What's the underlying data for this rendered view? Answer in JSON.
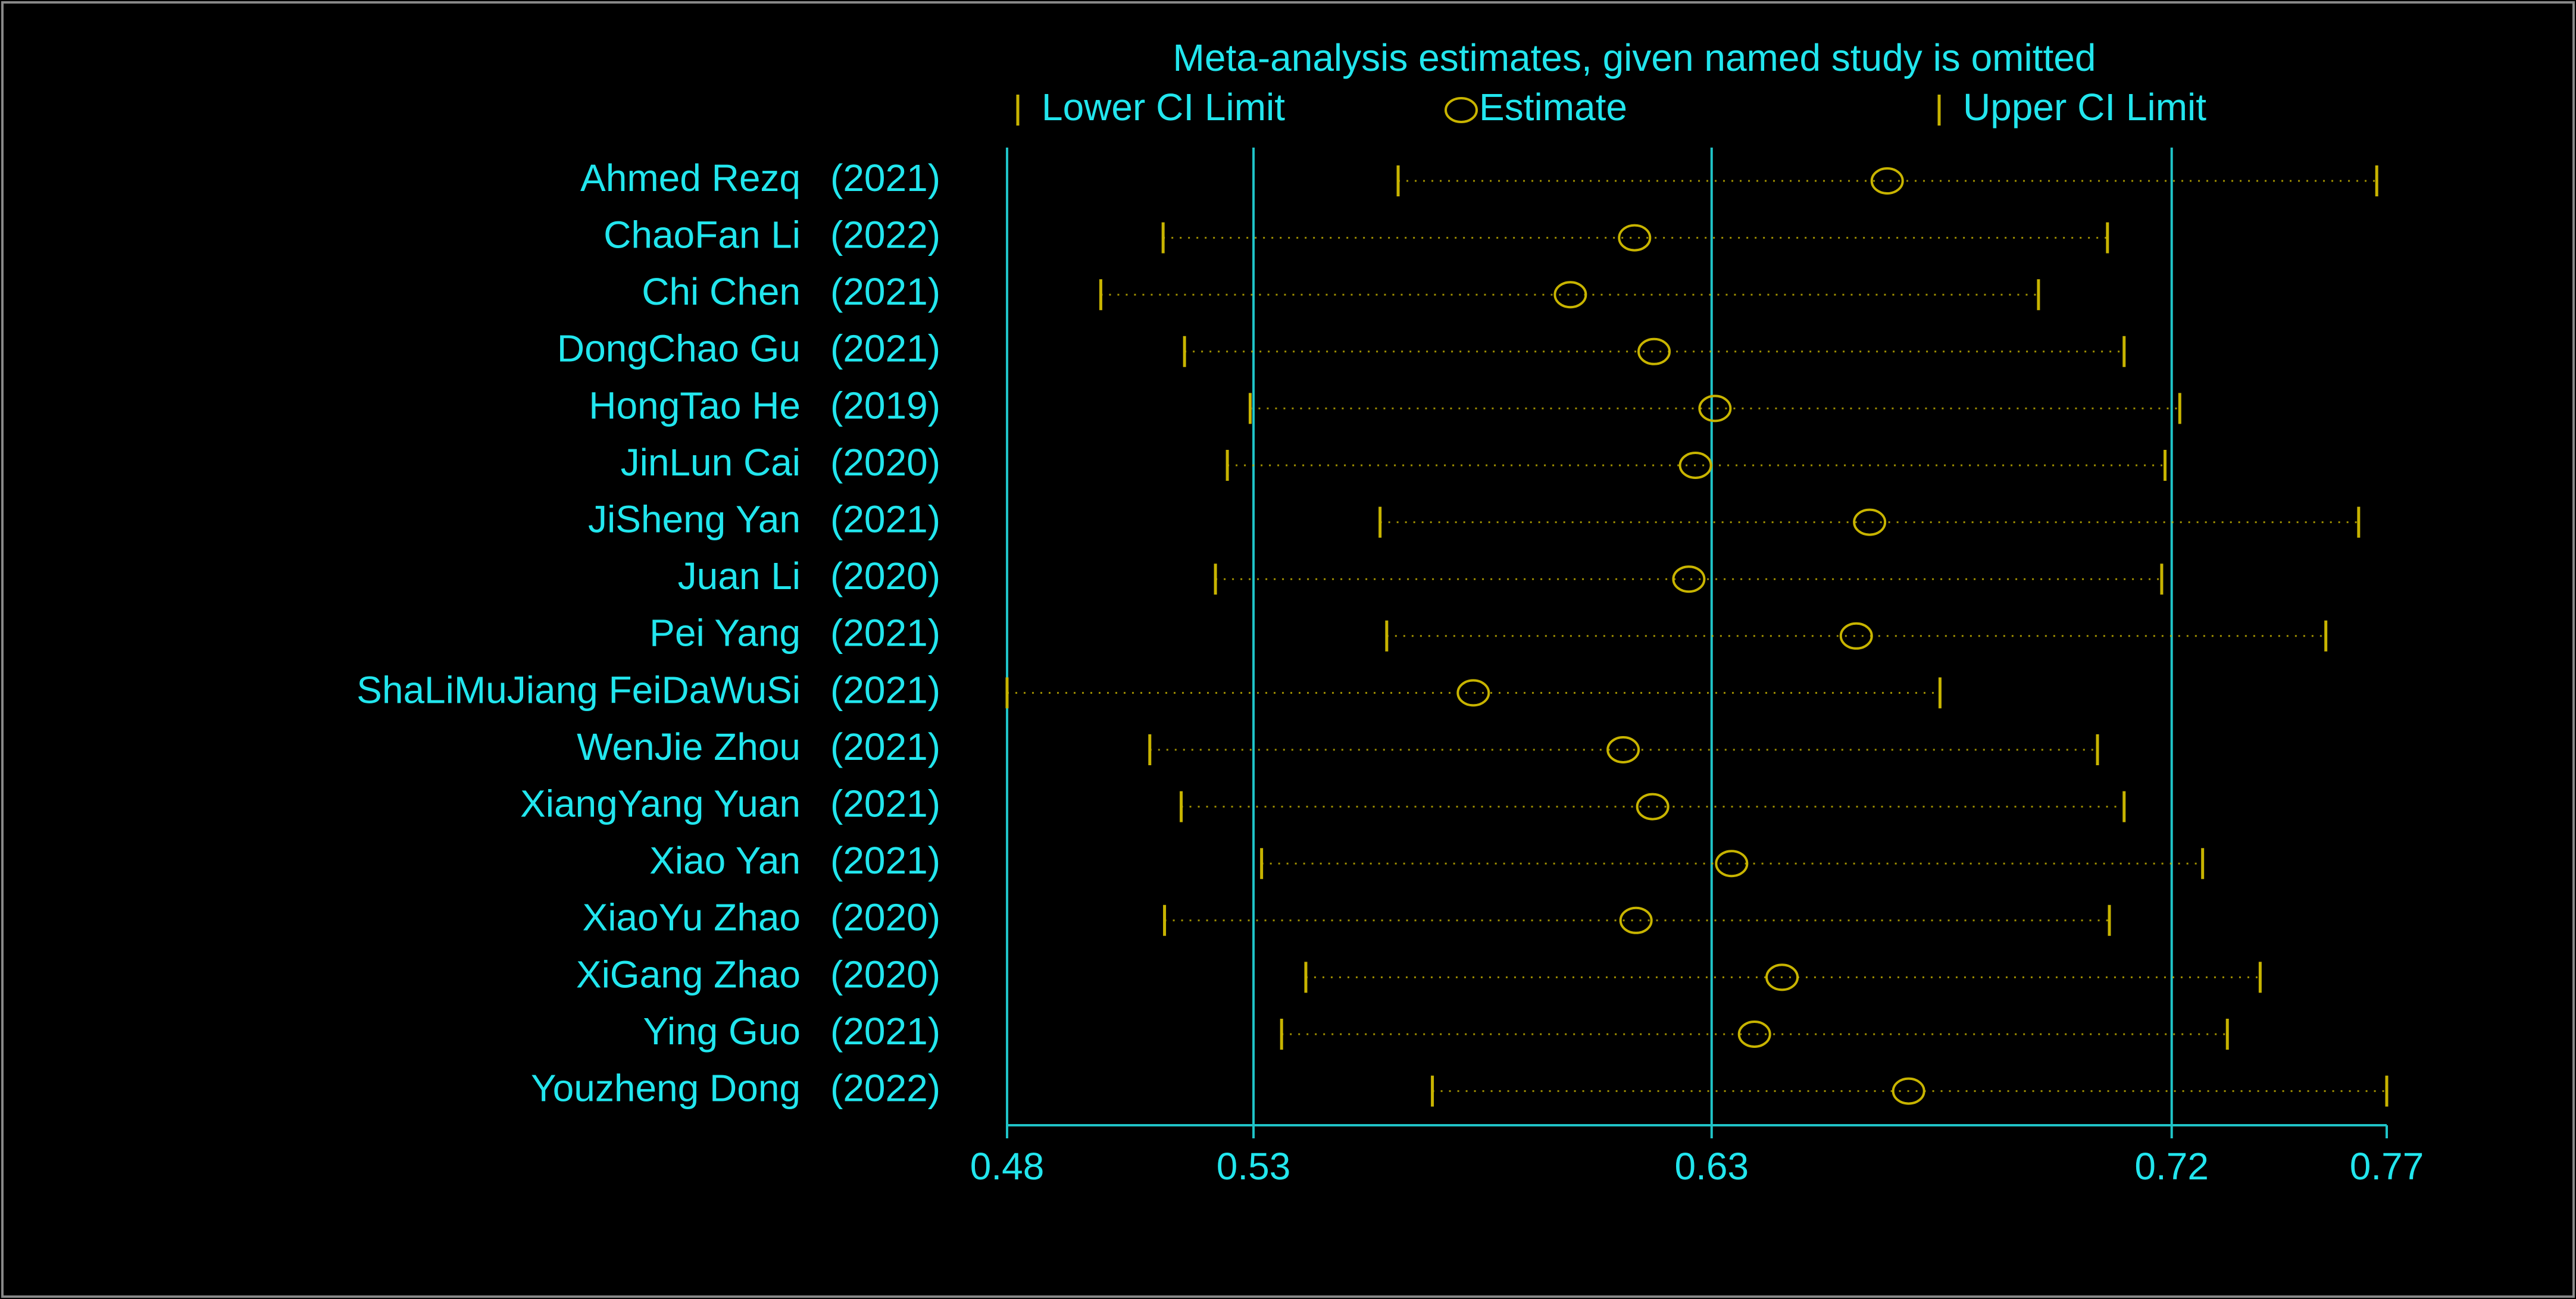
{
  "chart_data": {
    "type": "sensitivity",
    "title": "Meta-analysis estimates, given named study is omitted",
    "categories": [
      "Ahmed Rezq",
      "ChaoFan Li",
      "Chi Chen",
      "DongChao Gu",
      "HongTao He",
      "JinLun Cai",
      "JiSheng Yan",
      "Juan Li",
      "Pei Yang",
      "ShaLiMuJiang FeiDaWuSi",
      "WenJie Zhou",
      "XiangYang Yuan",
      "Xiao Yan",
      "XiaoYu Zhao",
      "XiGang Zhao",
      "Ying Guo",
      "Youzheng Dong"
    ],
    "category_years": [
      "(2021)",
      "(2022)",
      "(2021)",
      "(2021)",
      "(2019)",
      "(2020)",
      "(2021)",
      "(2020)",
      "(2021)",
      "(2021)",
      "(2021)",
      "(2021)",
      "(2021)",
      "(2020)",
      "(2020)",
      "(2021)",
      "(2022)"
    ],
    "series": [
      {
        "name": "Lower CI Limit",
        "color": "#c8b400",
        "values": [
          0.5617,
          0.5123,
          0.4992,
          0.5168,
          0.5306,
          0.5258,
          0.5579,
          0.5233,
          0.5593,
          0.4795,
          0.5095,
          0.5161,
          0.533,
          0.5126,
          0.5423,
          0.5372,
          0.5689
        ]
      },
      {
        "name": "Estimate",
        "color": "#c8b400",
        "values": [
          0.6645,
          0.6114,
          0.5979,
          0.6155,
          0.6283,
          0.6242,
          0.6608,
          0.6228,
          0.658,
          0.5775,
          0.609,
          0.6152,
          0.6318,
          0.6117,
          0.6424,
          0.6366,
          0.669
        ]
      },
      {
        "name": "Upper CI Limit",
        "color": "#c8b400",
        "values": [
          0.7674,
          0.7108,
          0.6963,
          0.7143,
          0.726,
          0.7229,
          0.7636,
          0.7222,
          0.7567,
          0.6756,
          0.7087,
          0.7143,
          0.7308,
          0.7112,
          0.7429,
          0.736,
          0.7695
        ]
      }
    ],
    "xlim": [
      0.4795,
      0.7695
    ],
    "xticks": [
      {
        "value": 0.4795,
        "label": "0.48"
      },
      {
        "value": 0.5313,
        "label": "0.53"
      },
      {
        "value": 0.6276,
        "label": "0.63"
      },
      {
        "value": 0.7243,
        "label": "0.72"
      },
      {
        "value": 0.7695,
        "label": "0.77"
      }
    ],
    "grid": true,
    "axis_color": "#20c4c8"
  }
}
